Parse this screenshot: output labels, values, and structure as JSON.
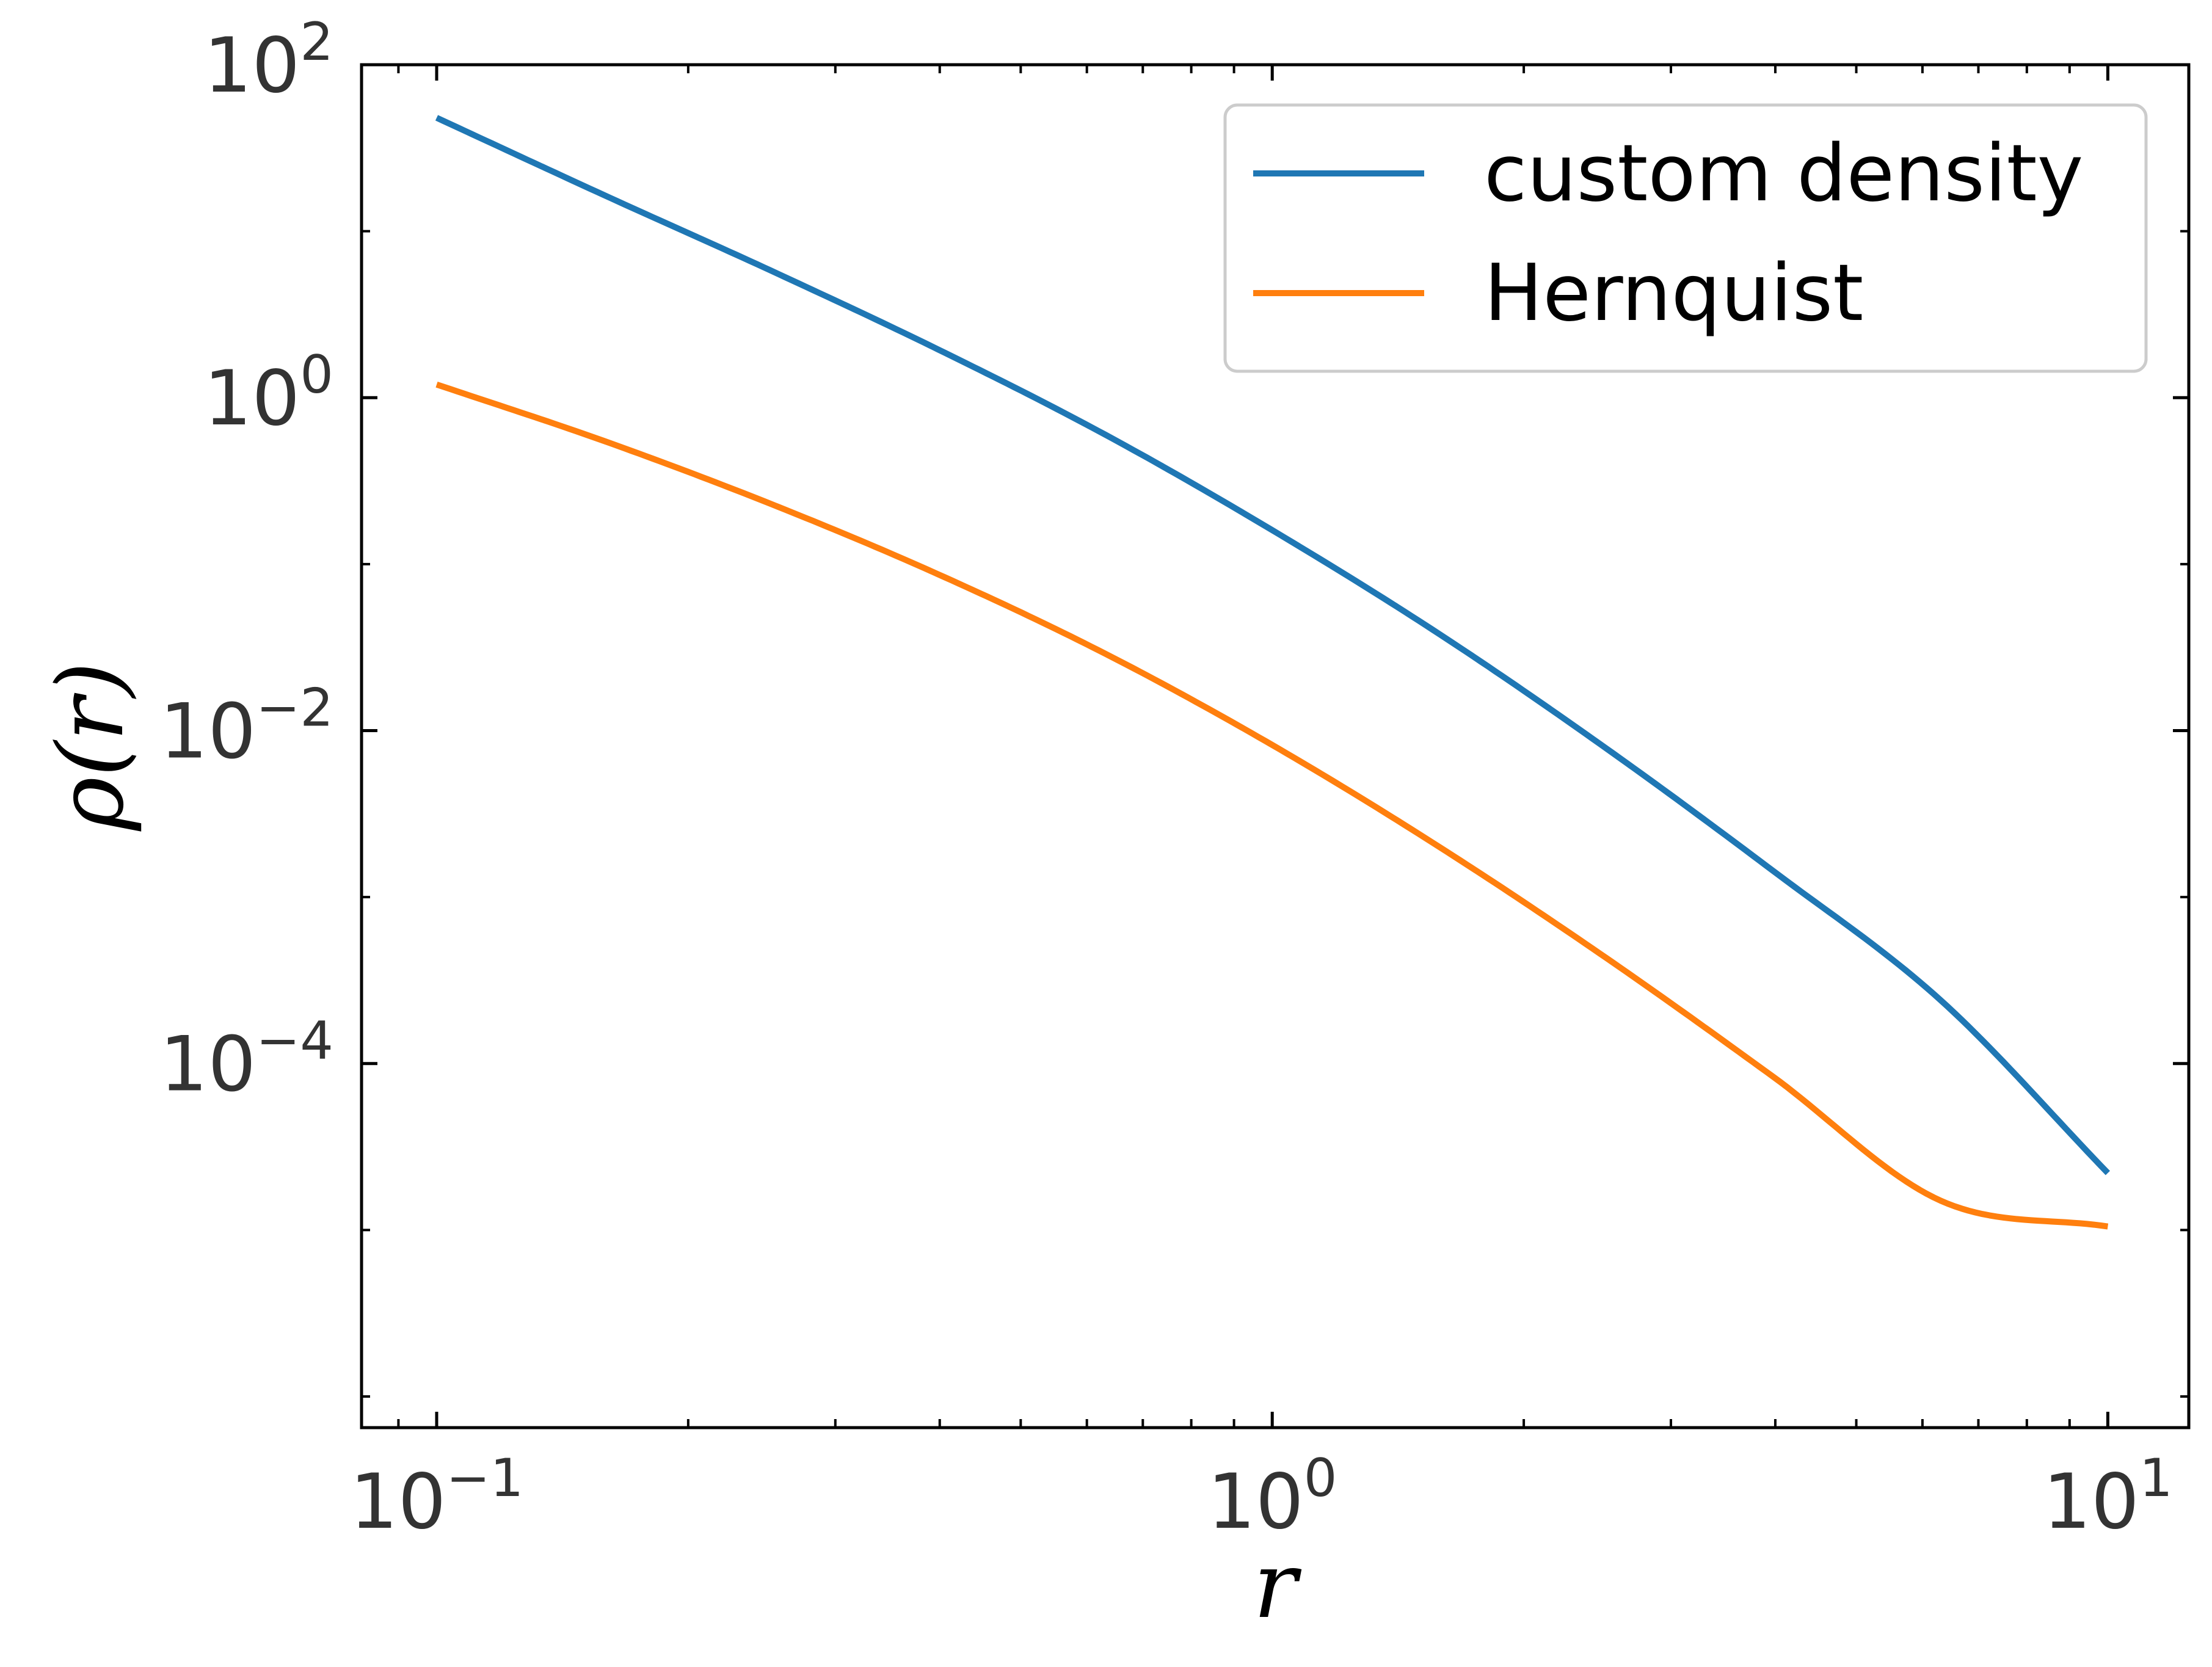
{
  "chart_data": {
    "type": "line",
    "title": "",
    "xlabel": "r",
    "ylabel": "ρ(r)",
    "xscale": "log",
    "yscale": "log",
    "xlim": [
      0.0813,
      12.5
    ],
    "ylim": [
      6.5e-07,
      100
    ],
    "grid": false,
    "legend_position": "top-right",
    "x_ticks": [
      {
        "value": 0.1,
        "base": "10",
        "exp": "−1"
      },
      {
        "value": 1,
        "base": "10",
        "exp": "0"
      },
      {
        "value": 10,
        "base": "10",
        "exp": "1"
      }
    ],
    "y_ticks": [
      {
        "value": 100,
        "base": "10",
        "exp": "2"
      },
      {
        "value": 1,
        "base": "10",
        "exp": "0"
      },
      {
        "value": 0.01,
        "base": "10",
        "exp": "−2"
      },
      {
        "value": 0.0001,
        "base": "10",
        "exp": "−4"
      }
    ],
    "x": [
      0.1,
      0.1585,
      0.2512,
      0.3981,
      0.631,
      1.0,
      1.585,
      2.512,
      3.981,
      6.31,
      10.0
    ],
    "series": [
      {
        "name": "custom density",
        "color": "#1f77b4",
        "values": [
          48.0,
          16.5,
          5.8,
          1.95,
          0.6,
          0.16,
          0.038,
          0.0078,
          0.00143,
          0.00024,
          2.2e-05
        ]
      },
      {
        "name": "Hernquist",
        "color": "#ff7f0e",
        "values": [
          1.2,
          0.55,
          0.23,
          0.087,
          0.029,
          0.0082,
          0.002,
          0.00043,
          8.3e-05,
          1.5e-05,
          1.05e-05
        ]
      }
    ]
  }
}
